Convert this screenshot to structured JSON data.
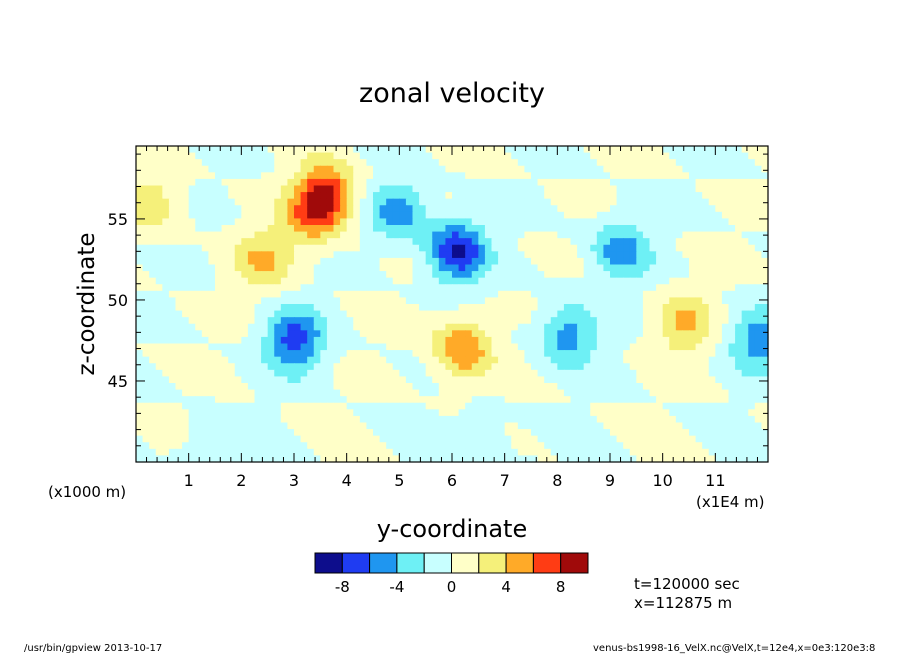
{
  "chart_data": {
    "type": "heatmap",
    "title": "zonal velocity",
    "xlabel": "y-coordinate",
    "ylabel": "z-coordinate",
    "x_scale_note": "(x1E4 m)",
    "y_scale_note": "(x1000 m)",
    "xlim": [
      0,
      12
    ],
    "ylim": [
      40,
      59.5
    ],
    "x_ticks": [
      "1",
      "2",
      "3",
      "4",
      "5",
      "6",
      "7",
      "8",
      "9",
      "10",
      "11"
    ],
    "y_ticks": [
      "45",
      "50",
      "55"
    ],
    "colorbar": {
      "levels": [
        -10,
        -8,
        -6,
        -4,
        -2,
        0,
        2,
        4,
        6,
        8,
        10
      ],
      "labels": [
        "-8",
        "-4",
        "0",
        "4",
        "8"
      ],
      "colors": [
        "#0d0d8c",
        "#1f3cf2",
        "#1f96f0",
        "#6ef0f5",
        "#c8ffff",
        "#ffffc8",
        "#f5f07a",
        "#ffaa28",
        "#ff3c14",
        "#a00a0a"
      ]
    },
    "features": [
      {
        "y": 3.6,
        "z": 56.5,
        "u": 8
      },
      {
        "y": 3.3,
        "z": 55.0,
        "u": 4
      },
      {
        "y": 2.4,
        "z": 52.5,
        "u": 4
      },
      {
        "y": 6.2,
        "z": 47.0,
        "u": 6
      },
      {
        "y": 10.4,
        "z": 48.5,
        "u": 4
      },
      {
        "y": 0.3,
        "z": 56.0,
        "u": 3
      },
      {
        "y": 5.0,
        "z": 55.5,
        "u": -5
      },
      {
        "y": 6.1,
        "z": 53.0,
        "u": -8
      },
      {
        "y": 3.0,
        "z": 47.5,
        "u": -7
      },
      {
        "y": 8.2,
        "z": 47.8,
        "u": -5
      },
      {
        "y": 9.2,
        "z": 53.0,
        "u": -5
      },
      {
        "y": 11.8,
        "z": 47.5,
        "u": -5
      },
      {
        "y": 1.5,
        "z": 40.8,
        "u": -2
      },
      {
        "y": 6.5,
        "z": 41.0,
        "u": -2
      }
    ]
  },
  "annotations": {
    "time": "t=120000 sec",
    "position": "x=112875 m"
  },
  "footer": {
    "left": "/usr/bin/gpview  2013-10-17",
    "right": "venus-bs1998-16_VelX.nc@VelX,t=12e4,x=0e3:120e3:8"
  }
}
